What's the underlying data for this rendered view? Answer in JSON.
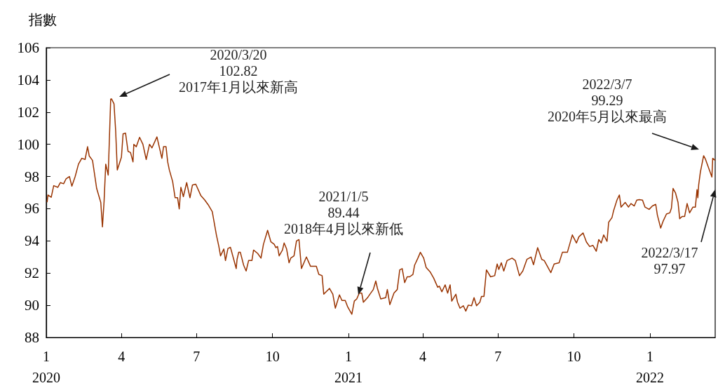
{
  "chart_data": {
    "type": "line",
    "ylabel": "指數",
    "xlim": [
      "2020-01-01",
      "2022-03-21"
    ],
    "ylim": [
      88,
      106
    ],
    "yticks": [
      88,
      90,
      92,
      94,
      96,
      98,
      100,
      102,
      104,
      106
    ],
    "xticks": [
      {
        "value": "2020-01-01",
        "label": "1\n2020"
      },
      {
        "value": "2020-04-01",
        "label": "4"
      },
      {
        "value": "2020-07-01",
        "label": "7"
      },
      {
        "value": "2020-10-01",
        "label": "10"
      },
      {
        "value": "2021-01-01",
        "label": "1\n2021"
      },
      {
        "value": "2021-04-01",
        "label": "4"
      },
      {
        "value": "2021-07-01",
        "label": "7"
      },
      {
        "value": "2021-10-01",
        "label": "10"
      },
      {
        "value": "2022-01-01",
        "label": "1\n2022"
      }
    ],
    "grid": false,
    "marker": "none",
    "line_style": "solid",
    "annotations": [
      "2020/3/20\n102.82\n2017年1月以來新高",
      "2021/1/5\n89.44\n2018年4月以來新低",
      "2022/3/7\n99.29\n2020年5月以來最高",
      "2022/3/17\n97.97"
    ],
    "series": [
      {
        "color": "#993300",
        "x": [
          "2020-01-02",
          "2020-01-03",
          "2020-01-07",
          "2020-01-10",
          "2020-01-15",
          "2020-01-18",
          "2020-01-22",
          "2020-01-25",
          "2020-01-29",
          "2020-02-01",
          "2020-02-05",
          "2020-02-09",
          "2020-02-13",
          "2020-02-17",
          "2020-02-20",
          "2020-02-22",
          "2020-02-26",
          "2020-03-02",
          "2020-03-07",
          "2020-03-09",
          "2020-03-11",
          "2020-03-13",
          "2020-03-16",
          "2020-03-19",
          "2020-03-20",
          "2020-03-23",
          "2020-03-25",
          "2020-03-27",
          "2020-04-01",
          "2020-04-03",
          "2020-04-06",
          "2020-04-09",
          "2020-04-12",
          "2020-04-15",
          "2020-04-16",
          "2020-04-19",
          "2020-04-23",
          "2020-04-27",
          "2020-05-01",
          "2020-05-05",
          "2020-05-08",
          "2020-05-14",
          "2020-05-20",
          "2020-05-22",
          "2020-05-25",
          "2020-05-27",
          "2020-05-29",
          "2020-06-02",
          "2020-06-05",
          "2020-06-08",
          "2020-06-10",
          "2020-06-12",
          "2020-06-15",
          "2020-06-19",
          "2020-06-23",
          "2020-06-26",
          "2020-06-30",
          "2020-07-06",
          "2020-07-11",
          "2020-07-15",
          "2020-07-20",
          "2020-07-25",
          "2020-07-28",
          "2020-07-30",
          "2020-08-03",
          "2020-08-05",
          "2020-08-08",
          "2020-08-11",
          "2020-08-15",
          "2020-08-18",
          "2020-08-19",
          "2020-08-21",
          "2020-08-23",
          "2020-08-27",
          "2020-08-30",
          "2020-09-02",
          "2020-09-06",
          "2020-09-08",
          "2020-09-13",
          "2020-09-17",
          "2020-09-20",
          "2020-09-25",
          "2020-09-29",
          "2020-10-03",
          "2020-10-05",
          "2020-10-07",
          "2020-10-09",
          "2020-10-13",
          "2020-10-15",
          "2020-10-18",
          "2020-10-21",
          "2020-10-23",
          "2020-10-27",
          "2020-10-30",
          "2020-11-02",
          "2020-11-05",
          "2020-11-11",
          "2020-11-16",
          "2020-11-23",
          "2020-11-26",
          "2020-11-30",
          "2020-12-02",
          "2020-12-09",
          "2020-12-13",
          "2020-12-16",
          "2020-12-21",
          "2020-12-24",
          "2020-12-28",
          "2020-12-31",
          "2021-01-05",
          "2021-01-08",
          "2021-01-11",
          "2021-01-14",
          "2021-01-17",
          "2021-01-19",
          "2021-01-24",
          "2021-01-26",
          "2021-01-31",
          "2021-02-03",
          "2021-02-05",
          "2021-02-09",
          "2021-02-15",
          "2021-02-17",
          "2021-02-20",
          "2021-02-25",
          "2021-03-01",
          "2021-03-04",
          "2021-03-07",
          "2021-03-10",
          "2021-03-13",
          "2021-03-16",
          "2021-03-20",
          "2021-03-22",
          "2021-03-26",
          "2021-03-29",
          "2021-04-02",
          "2021-04-05",
          "2021-04-10",
          "2021-04-14",
          "2021-04-19",
          "2021-04-21",
          "2021-04-24",
          "2021-04-28",
          "2021-05-01",
          "2021-05-04",
          "2021-05-06",
          "2021-05-11",
          "2021-05-13",
          "2021-05-16",
          "2021-05-20",
          "2021-05-23",
          "2021-05-26",
          "2021-05-30",
          "2021-06-02",
          "2021-06-05",
          "2021-06-09",
          "2021-06-11",
          "2021-06-14",
          "2021-06-17",
          "2021-06-22",
          "2021-06-27",
          "2021-06-30",
          "2021-07-02",
          "2021-07-05",
          "2021-07-08",
          "2021-07-12",
          "2021-07-18",
          "2021-07-22",
          "2021-07-27",
          "2021-07-31",
          "2021-08-05",
          "2021-08-10",
          "2021-08-13",
          "2021-08-18",
          "2021-08-23",
          "2021-08-26",
          "2021-09-03",
          "2021-09-07",
          "2021-09-13",
          "2021-09-17",
          "2021-09-23",
          "2021-09-29",
          "2021-10-04",
          "2021-10-07",
          "2021-10-12",
          "2021-10-16",
          "2021-10-20",
          "2021-10-24",
          "2021-10-28",
          "2021-10-31",
          "2021-11-03",
          "2021-11-06",
          "2021-11-10",
          "2021-11-12",
          "2021-11-16",
          "2021-11-18",
          "2021-11-22",
          "2021-11-25",
          "2021-11-27",
          "2021-12-02",
          "2021-12-06",
          "2021-12-09",
          "2021-12-13",
          "2021-12-16",
          "2021-12-19",
          "2021-12-23",
          "2021-12-26",
          "2021-12-31",
          "2022-01-04",
          "2022-01-08",
          "2022-01-10",
          "2022-01-14",
          "2022-01-17",
          "2022-01-21",
          "2022-01-25",
          "2022-01-27",
          "2022-01-29",
          "2022-02-01",
          "2022-02-04",
          "2022-02-06",
          "2022-02-09",
          "2022-02-12",
          "2022-02-15",
          "2022-02-18",
          "2022-02-22",
          "2022-02-25",
          "2022-02-27",
          "2022-02-28",
          "2022-03-01",
          "2022-03-03",
          "2022-03-07",
          "2022-03-09",
          "2022-03-17",
          "2022-03-18",
          "2022-03-21"
        ],
        "values": [
          96.4,
          96.85,
          96.71,
          97.43,
          97.33,
          97.62,
          97.55,
          97.86,
          98.0,
          97.4,
          98.0,
          98.77,
          99.13,
          99.06,
          99.85,
          99.28,
          99.0,
          97.26,
          96.39,
          94.87,
          96.46,
          98.77,
          98.09,
          102.81,
          102.82,
          102.52,
          100.86,
          98.41,
          99.2,
          100.65,
          100.69,
          99.56,
          99.49,
          98.91,
          100.0,
          99.85,
          100.43,
          100.0,
          99.06,
          100.0,
          99.78,
          100.46,
          99.13,
          99.85,
          99.85,
          98.91,
          98.41,
          97.69,
          96.68,
          96.68,
          95.99,
          97.33,
          96.75,
          97.62,
          96.68,
          97.47,
          97.52,
          96.83,
          96.53,
          96.25,
          95.82,
          94.37,
          93.65,
          93.07,
          93.5,
          92.78,
          93.53,
          93.6,
          92.85,
          92.28,
          92.85,
          93.29,
          93.29,
          92.49,
          92.13,
          92.78,
          92.78,
          93.43,
          93.22,
          92.93,
          93.79,
          94.66,
          93.94,
          93.79,
          93.58,
          93.65,
          93.07,
          93.43,
          93.87,
          93.5,
          92.64,
          92.93,
          93.07,
          94.0,
          94.08,
          92.28,
          93.0,
          92.42,
          92.42,
          91.92,
          91.84,
          90.69,
          91.05,
          90.69,
          89.82,
          90.65,
          90.3,
          90.3,
          89.9,
          89.44,
          90.26,
          90.4,
          90.76,
          90.76,
          90.19,
          90.47,
          90.62,
          90.98,
          91.51,
          91.05,
          90.4,
          90.47,
          90.98,
          90.04,
          90.76,
          90.98,
          92.2,
          92.28,
          91.41,
          91.77,
          91.77,
          91.92,
          92.49,
          92.93,
          93.29,
          92.93,
          92.35,
          92.06,
          91.7,
          91.12,
          91.19,
          90.84,
          91.27,
          90.76,
          91.27,
          90.26,
          90.69,
          90.19,
          89.82,
          89.97,
          89.64,
          90.01,
          89.97,
          90.47,
          89.97,
          90.19,
          90.55,
          90.55,
          92.2,
          91.77,
          91.84,
          92.57,
          92.23,
          92.64,
          92.13,
          92.78,
          92.93,
          92.78,
          91.84,
          92.13,
          92.85,
          93.0,
          92.52,
          93.58,
          92.85,
          92.78,
          92.03,
          92.57,
          92.64,
          93.29,
          93.29,
          94.37,
          93.87,
          94.26,
          94.49,
          93.94,
          93.65,
          93.72,
          93.36,
          94.08,
          93.87,
          94.37,
          93.97,
          95.16,
          95.45,
          95.88,
          96.53,
          96.85,
          96.1,
          96.39,
          96.1,
          96.32,
          96.17,
          96.53,
          96.56,
          96.53,
          96.1,
          95.96,
          96.17,
          96.27,
          95.6,
          94.8,
          95.23,
          95.67,
          95.74,
          96.03,
          97.26,
          96.97,
          96.39,
          95.38,
          95.52,
          95.52,
          96.32,
          95.74,
          96.1,
          96.1,
          97.18,
          96.68,
          97.47,
          98.26,
          99.29,
          99.1,
          97.97,
          99.13,
          99.0
        ]
      }
    ]
  }
}
